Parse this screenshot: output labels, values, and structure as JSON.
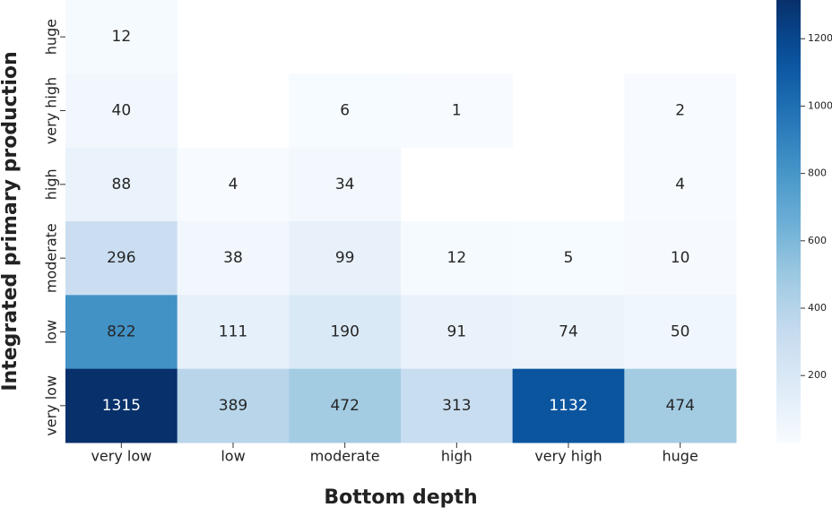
{
  "chart_data": {
    "type": "heatmap",
    "xlabel": "Bottom depth",
    "ylabel": "Integrated primary production",
    "x_categories": [
      "very low",
      "low",
      "moderate",
      "high",
      "very high",
      "huge"
    ],
    "y_categories": [
      "huge",
      "very high",
      "high",
      "moderate",
      "low",
      "very low"
    ],
    "values": [
      [
        12,
        null,
        null,
        null,
        null,
        null
      ],
      [
        40,
        null,
        6,
        1,
        null,
        2
      ],
      [
        88,
        4,
        34,
        null,
        null,
        4
      ],
      [
        296,
        38,
        99,
        12,
        5,
        10
      ],
      [
        822,
        111,
        190,
        91,
        74,
        50
      ],
      [
        1315,
        389,
        472,
        313,
        1132,
        474
      ]
    ],
    "colormap": "Blues",
    "zlim": [
      1,
      1315
    ],
    "zticks": [
      200,
      400,
      600,
      800,
      1000,
      1200
    ]
  }
}
